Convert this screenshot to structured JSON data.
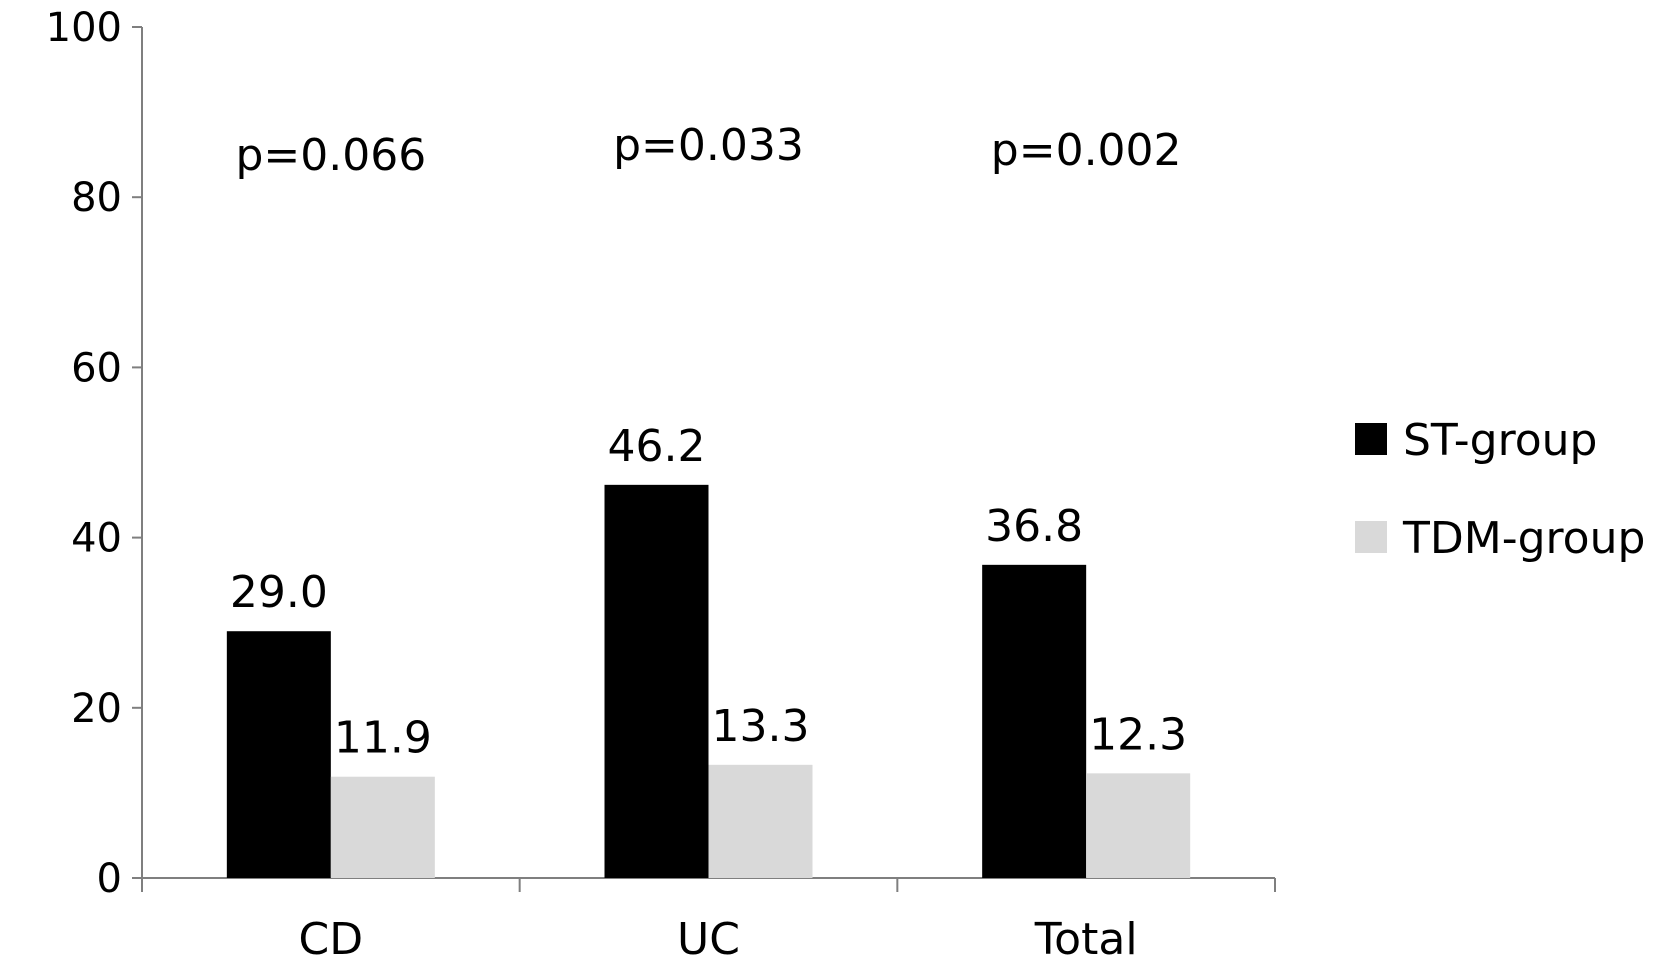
{
  "chart_data": {
    "type": "bar",
    "categories": [
      "CD",
      "UC",
      "Total"
    ],
    "series": [
      {
        "name": "ST-group",
        "values": [
          29.0,
          46.2,
          36.8
        ],
        "labels": [
          "29.0",
          "46.2",
          "36.8"
        ],
        "color": "#000000"
      },
      {
        "name": "TDM-group",
        "values": [
          11.9,
          13.3,
          12.3
        ],
        "labels": [
          "11.9",
          "13.3",
          "12.3"
        ],
        "color": "#d9d9d9"
      }
    ],
    "annotations": [
      "p=0.066",
      "p=0.033",
      "p=0.002"
    ],
    "yticks": [
      "0",
      "20",
      "40",
      "60",
      "80",
      "100"
    ],
    "ylim": [
      0,
      100
    ],
    "title": "",
    "xlabel": "",
    "ylabel": "",
    "grid": false,
    "legend_position": "right"
  }
}
